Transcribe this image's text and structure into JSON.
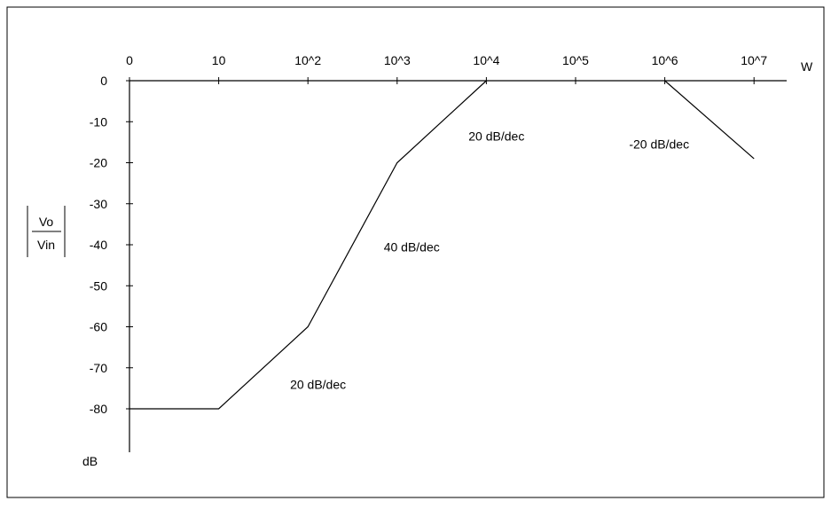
{
  "chart_data": {
    "type": "line",
    "x_tick_labels": [
      "0",
      "10",
      "10^2",
      "10^3",
      "10^4",
      "10^5",
      "10^6",
      "10^7"
    ],
    "x_axis_label": "W",
    "y_tick_values": [
      0,
      -10,
      -20,
      -30,
      -40,
      -50,
      -60,
      -70,
      -80
    ],
    "y_unit_label": "dB",
    "y_label_numerator": "Vo",
    "y_label_denominator": "Vin",
    "ylim": [
      -90,
      0
    ],
    "series": [
      {
        "points": [
          {
            "decade": 0,
            "y": -80
          },
          {
            "decade": 1,
            "y": -80
          },
          {
            "decade": 2,
            "y": -60
          },
          {
            "decade": 3,
            "y": -20
          },
          {
            "decade": 4,
            "y": 0
          }
        ]
      },
      {
        "points": [
          {
            "decade": 6,
            "y": 0
          },
          {
            "decade": 7,
            "y": -19
          }
        ]
      }
    ],
    "annotations": [
      {
        "text": "20 dB/dec",
        "decade": 1.8,
        "y": -74
      },
      {
        "text": "40 dB/dec",
        "decade": 2.85,
        "y": -40.5
      },
      {
        "text": "20 dB/dec",
        "decade": 3.8,
        "y": -13.5
      },
      {
        "text": "-20 dB/dec",
        "decade": 5.6,
        "y": -15.5
      }
    ],
    "colors": {
      "line": "#000000",
      "frame": "#000000"
    }
  }
}
